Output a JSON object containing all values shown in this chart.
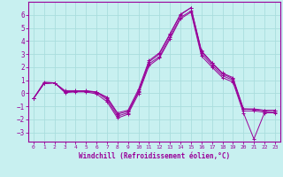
{
  "xlabel": "Windchill (Refroidissement éolien,°C)",
  "bg_color": "#c8f0f0",
  "line_color": "#990099",
  "grid_color": "#aadddd",
  "xlim": [
    -0.5,
    23.5
  ],
  "ylim": [
    -3.7,
    7.0
  ],
  "xticks": [
    0,
    1,
    2,
    3,
    4,
    5,
    6,
    7,
    8,
    9,
    10,
    11,
    12,
    13,
    14,
    15,
    16,
    17,
    18,
    19,
    20,
    21,
    22,
    23
  ],
  "yticks": [
    -3,
    -2,
    -1,
    0,
    1,
    2,
    3,
    4,
    5,
    6
  ],
  "series": [
    [
      -0.4,
      0.75,
      0.8,
      0.1,
      0.15,
      0.2,
      0.1,
      -0.5,
      -1.75,
      -1.5,
      0.15,
      2.4,
      3.0,
      4.5,
      6.0,
      6.55,
      3.2,
      2.3,
      1.5,
      1.1,
      -1.2,
      -1.25,
      -1.35,
      -1.3
    ],
    [
      -0.4,
      0.75,
      0.8,
      0.1,
      0.15,
      0.15,
      0.05,
      -0.35,
      -1.6,
      -1.4,
      0.1,
      2.25,
      2.8,
      4.3,
      5.8,
      6.3,
      3.05,
      2.15,
      1.35,
      1.0,
      -1.35,
      -1.35,
      -1.45,
      -1.45
    ],
    [
      -0.4,
      0.75,
      0.8,
      0.05,
      0.1,
      0.1,
      -0.05,
      -0.65,
      -1.9,
      -1.6,
      -0.05,
      2.1,
      2.7,
      4.15,
      5.7,
      6.2,
      2.85,
      2.0,
      1.2,
      0.85,
      -1.5,
      -3.5,
      -1.5,
      -1.5
    ],
    [
      -0.4,
      0.85,
      0.8,
      0.2,
      0.2,
      0.15,
      0.1,
      -0.3,
      -1.5,
      -1.3,
      0.3,
      2.5,
      3.1,
      4.55,
      6.05,
      6.55,
      3.25,
      2.35,
      1.55,
      1.2,
      -1.2,
      -1.2,
      -1.3,
      -1.3
    ]
  ]
}
